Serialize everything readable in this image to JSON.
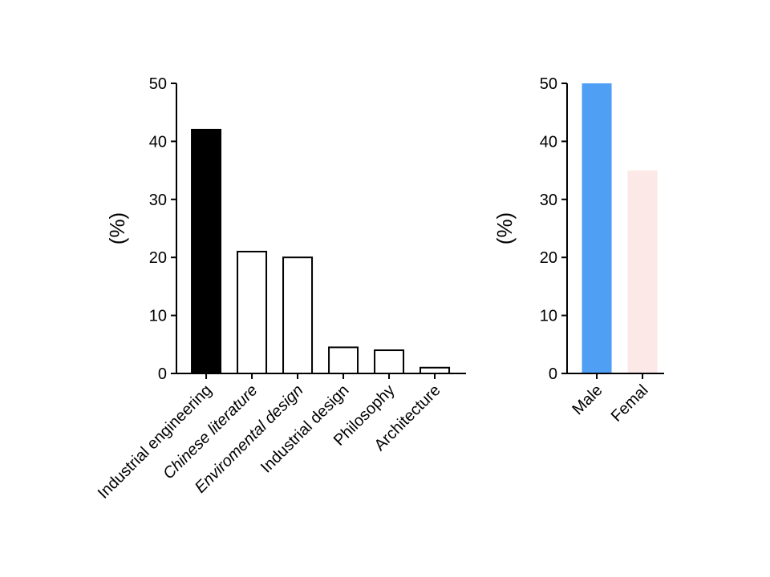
{
  "chart_data": [
    {
      "type": "bar",
      "categories": [
        "Industrial engineering",
        "Chinese literature",
        "Enviromental design",
        "Industrial design",
        "Philosophy",
        "Architecture"
      ],
      "category_italic": [
        false,
        true,
        true,
        false,
        false,
        false
      ],
      "values": [
        42,
        21,
        20,
        4.5,
        4,
        1
      ],
      "ylabel": "(%)",
      "xlabel": "",
      "ylim": [
        0,
        50
      ],
      "yticks": [
        0,
        10,
        20,
        30,
        40,
        50
      ],
      "bar_fills": [
        "#000000",
        "#ffffff",
        "#ffffff",
        "#ffffff",
        "#ffffff",
        "#ffffff"
      ],
      "bar_strokes": [
        "#000000",
        "#000000",
        "#000000",
        "#000000",
        "#000000",
        "#000000"
      ],
      "grid": false
    },
    {
      "type": "bar",
      "categories": [
        "Male",
        "Femal"
      ],
      "category_italic": [
        false,
        false
      ],
      "values": [
        50,
        35
      ],
      "ylabel": "(%)",
      "xlabel": "",
      "ylim": [
        0,
        50
      ],
      "yticks": [
        0,
        10,
        20,
        30,
        40,
        50
      ],
      "bar_fills": [
        "#4f9ff5",
        "#fde8e8"
      ],
      "bar_strokes": [
        "none",
        "none"
      ],
      "grid": false
    }
  ]
}
